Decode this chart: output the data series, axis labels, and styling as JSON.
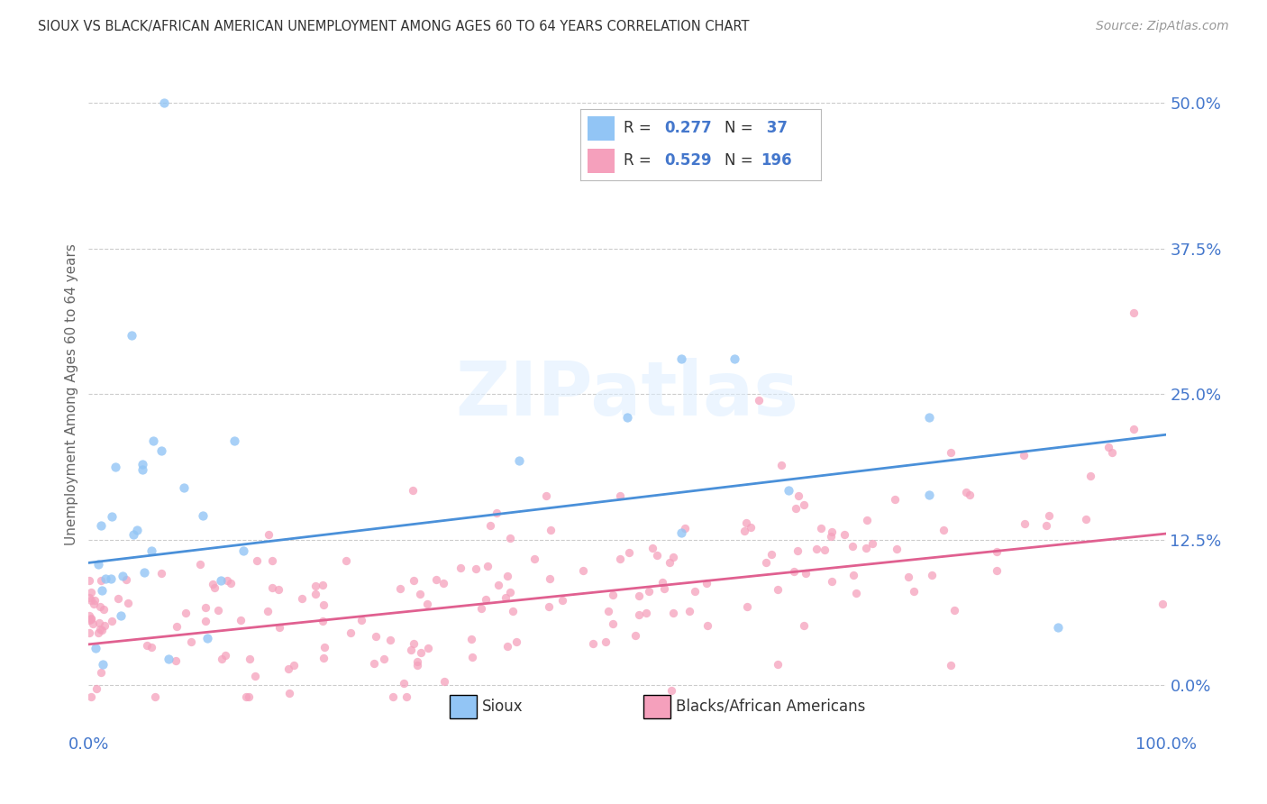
{
  "title": "SIOUX VS BLACK/AFRICAN AMERICAN UNEMPLOYMENT AMONG AGES 60 TO 64 YEARS CORRELATION CHART",
  "source_text": "Source: ZipAtlas.com",
  "ylabel": "Unemployment Among Ages 60 to 64 years",
  "xlim": [
    0.0,
    1.0
  ],
  "ylim": [
    -0.04,
    0.54
  ],
  "yticks": [
    0.0,
    0.125,
    0.25,
    0.375,
    0.5
  ],
  "ytick_labels": [
    "0.0%",
    "12.5%",
    "25.0%",
    "37.5%",
    "50.0%"
  ],
  "xticks": [
    0.0,
    1.0
  ],
  "xtick_labels": [
    "0.0%",
    "100.0%"
  ],
  "watermark_text": "ZIPatlas",
  "sioux_color": "#92c5f5",
  "blacks_color": "#f5a0bc",
  "sioux_line_color": "#4a90d9",
  "blacks_line_color": "#e06090",
  "background_color": "#ffffff",
  "grid_color": "#cccccc",
  "title_color": "#333333",
  "axis_label_color": "#666666",
  "tick_label_color": "#4477cc",
  "R_sioux": 0.277,
  "N_sioux": 37,
  "R_blacks": 0.529,
  "N_blacks": 196,
  "sioux_line_x0": 0.0,
  "sioux_line_y0": 0.105,
  "sioux_line_x1": 1.0,
  "sioux_line_y1": 0.215,
  "blacks_line_x0": 0.0,
  "blacks_line_y0": 0.035,
  "blacks_line_x1": 1.0,
  "blacks_line_y1": 0.13
}
